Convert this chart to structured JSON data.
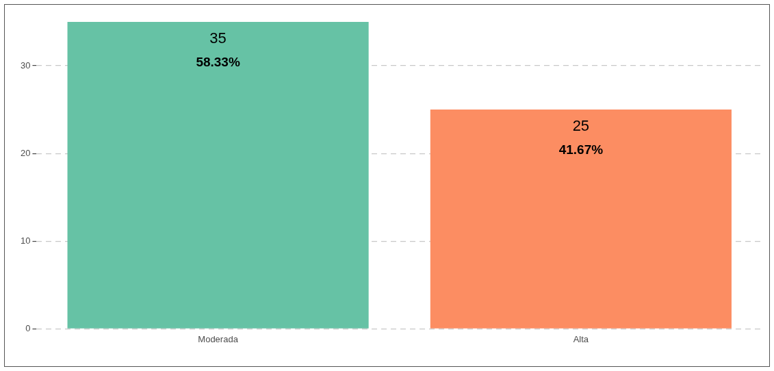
{
  "chart_data": {
    "type": "bar",
    "categories": [
      "Moderada",
      "Alta"
    ],
    "values": [
      35,
      25
    ],
    "colors": [
      "#66c2a5",
      "#fc8d62"
    ],
    "ylim": [
      0,
      35
    ],
    "yticks": [
      0,
      10,
      20,
      30
    ],
    "grid": "y",
    "data_labels": true,
    "annotations": [
      "58.33%",
      "41.67%"
    ]
  }
}
